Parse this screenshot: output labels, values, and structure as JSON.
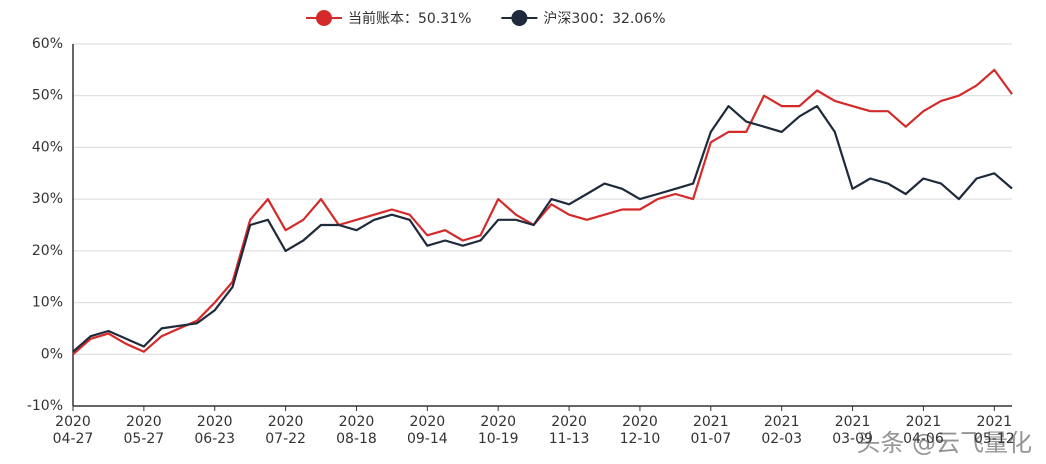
{
  "chart_data": {
    "type": "line",
    "categories": [
      "2020\n04-27",
      null,
      null,
      null,
      "2020\n05-27",
      null,
      null,
      null,
      "2020\n06-23",
      null,
      null,
      null,
      "2020\n07-22",
      null,
      null,
      null,
      "2020\n08-18",
      null,
      null,
      null,
      "2020\n09-14",
      null,
      null,
      null,
      "2020\n10-19",
      null,
      null,
      null,
      "2020\n11-13",
      null,
      null,
      null,
      "2020\n12-10",
      null,
      null,
      null,
      "2021\n01-07",
      null,
      null,
      null,
      "2021\n02-03",
      null,
      null,
      null,
      "2021\n03-09",
      null,
      null,
      null,
      "2021\n04-06",
      null,
      null,
      null,
      "2021\n05-12",
      null
    ],
    "series": [
      {
        "name": "当前账本：50.31%",
        "color": "#d42a2a",
        "values": [
          0,
          3,
          4,
          2,
          0.5,
          3.5,
          5,
          6.5,
          10,
          14,
          26,
          30,
          24,
          26,
          30,
          25,
          26,
          27,
          28,
          27,
          23,
          24,
          22,
          23,
          30,
          27,
          25,
          29,
          27,
          26,
          27,
          28,
          28,
          30,
          31,
          30,
          41,
          43,
          43,
          50,
          48,
          48,
          51,
          49,
          48,
          47,
          47,
          44,
          47,
          49,
          50,
          52,
          55,
          50.31
        ]
      },
      {
        "name": "沪深300：32.06%",
        "color": "#1f2a3c",
        "values": [
          0.5,
          3.5,
          4.5,
          3,
          1.5,
          5,
          5.5,
          6,
          8.5,
          13,
          25,
          26,
          20,
          22,
          25,
          25,
          24,
          26,
          27,
          26,
          21,
          22,
          21,
          22,
          26,
          26,
          25,
          30,
          29,
          31,
          33,
          32,
          30,
          31,
          32,
          33,
          43,
          48,
          45,
          44,
          43,
          46,
          48,
          43,
          32,
          34,
          33,
          31,
          34,
          33,
          30,
          34,
          35,
          32.06
        ]
      }
    ],
    "ylim": [
      -10,
      60
    ],
    "yticks": [
      {
        "value": -10,
        "label": "-10%"
      },
      {
        "value": 0,
        "label": "0%"
      },
      {
        "value": 10,
        "label": "10%"
      },
      {
        "value": 20,
        "label": "20%"
      },
      {
        "value": 30,
        "label": "30%"
      },
      {
        "value": 40,
        "label": "40%"
      },
      {
        "value": 50,
        "label": "50%"
      },
      {
        "value": 60,
        "label": "60%"
      }
    ],
    "grid": true,
    "legend": "top",
    "watermark": "头条 @云飞量化"
  }
}
